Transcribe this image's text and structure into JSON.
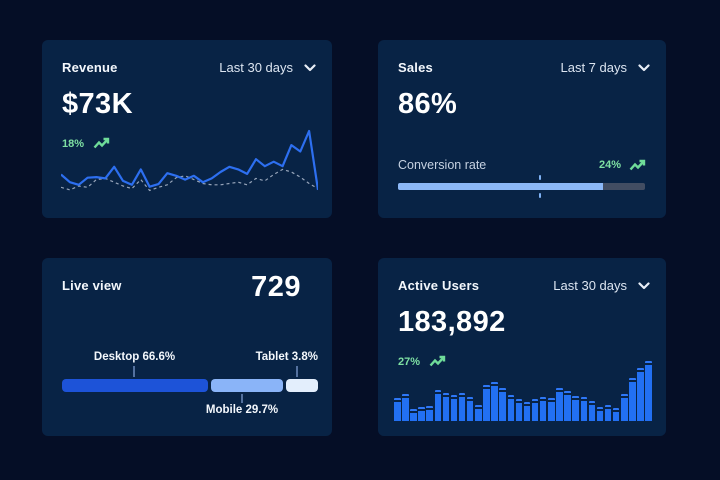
{
  "page": {
    "background": "#050e26",
    "card_background": "#082345"
  },
  "colors": {
    "accent_blue": "#2d6ff0",
    "light_blue": "#8cb8f7",
    "pale_blue": "#e3eefc",
    "deep_blue": "#1d53d8",
    "bar_blue": "#2270f2",
    "green": "#7ee0a3",
    "track_gray": "#424d62",
    "dashed_gray": "#97a5ba"
  },
  "cards": {
    "revenue": {
      "title": "Revenue",
      "period": "Last 30 days",
      "value": "$73K",
      "change": "18%"
    },
    "sales": {
      "title": "Sales",
      "period": "Last 7 days",
      "value": "86%",
      "metric_label": "Conversion rate",
      "change": "24%"
    },
    "live_view": {
      "title": "Live view",
      "value": "729",
      "labels": {
        "desktop": "Desktop 66.6%",
        "mobile": "Mobile 29.7%",
        "tablet": "Tablet 3.8%"
      }
    },
    "active_users": {
      "title": "Active Users",
      "period": "Last 30 days",
      "value": "183,892",
      "change": "27%"
    }
  },
  "icons": {
    "chevron_down": "chevron-down-icon",
    "trend_up": "trend-up-icon"
  },
  "chart_data": [
    {
      "card": "revenue",
      "type": "line",
      "title": "Revenue — Last 30 days",
      "ylim": [
        0,
        1
      ],
      "grid": false,
      "legend": "none",
      "note": "values are normalized heights read from the sparkline; no axis labels shown in UI",
      "series": [
        {
          "name": "current",
          "style": "solid",
          "color": "#2d6ff0",
          "values": [
            0.32,
            0.2,
            0.16,
            0.27,
            0.28,
            0.26,
            0.44,
            0.22,
            0.16,
            0.4,
            0.13,
            0.17,
            0.34,
            0.3,
            0.24,
            0.3,
            0.2,
            0.26,
            0.36,
            0.44,
            0.4,
            0.33,
            0.56,
            0.45,
            0.52,
            0.45,
            0.78,
            0.68,
            1.0,
            0.08
          ]
        },
        {
          "name": "previous",
          "style": "dashed",
          "color": "#97a5ba",
          "values": [
            0.12,
            0.08,
            0.14,
            0.12,
            0.24,
            0.26,
            0.2,
            0.14,
            0.1,
            0.24,
            0.07,
            0.12,
            0.16,
            0.27,
            0.3,
            0.24,
            0.18,
            0.16,
            0.16,
            0.18,
            0.2,
            0.16,
            0.26,
            0.22,
            0.32,
            0.4,
            0.36,
            0.28,
            0.18,
            0.1
          ]
        }
      ]
    },
    {
      "card": "sales",
      "type": "progress",
      "headline_pct": 86,
      "fill_pct": 83,
      "marker_pct": 57,
      "label": "Conversion rate",
      "change_pct": 24
    },
    {
      "card": "live_view",
      "type": "stacked-bar",
      "total": 729,
      "segments": [
        {
          "name": "Desktop",
          "pct": 66.6,
          "color": "#1d53d8",
          "display_flex": 143
        },
        {
          "name": "Mobile",
          "pct": 29.7,
          "color": "#8ab4f8",
          "display_flex": 71
        },
        {
          "name": "Tablet",
          "pct": 3.8,
          "color": "#e3eefc",
          "display_flex": 31
        }
      ]
    },
    {
      "card": "active_users",
      "type": "bar",
      "bar_color": "#2270f2",
      "ylim": [
        0,
        1
      ],
      "note": "normalized bar heights read from the mini bar chart; no axis labels shown in UI",
      "values": [
        0.38,
        0.45,
        0.2,
        0.24,
        0.25,
        0.52,
        0.47,
        0.44,
        0.47,
        0.4,
        0.26,
        0.6,
        0.65,
        0.55,
        0.44,
        0.36,
        0.32,
        0.36,
        0.4,
        0.38,
        0.55,
        0.5,
        0.42,
        0.4,
        0.34,
        0.24,
        0.27,
        0.22,
        0.45,
        0.72,
        0.88,
        1.0
      ]
    }
  ]
}
